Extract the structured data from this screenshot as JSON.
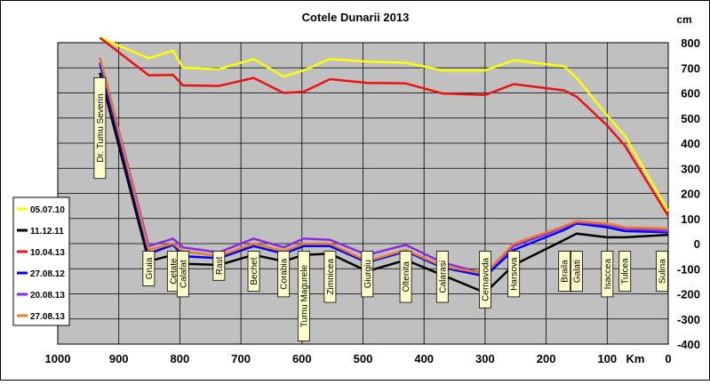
{
  "chart_data": {
    "type": "line",
    "title": "Cotele Dunarii 2013",
    "ylabel": "cm",
    "xlabel": "Km",
    "xlim": [
      1000,
      0
    ],
    "ylim": [
      -400,
      800
    ],
    "x_ticks": [
      1000,
      900,
      800,
      700,
      600,
      500,
      400,
      300,
      200,
      100,
      0
    ],
    "y_ticks": [
      -400,
      -300,
      -200,
      -100,
      0,
      100,
      200,
      300,
      400,
      500,
      600,
      700,
      800
    ],
    "grid": true,
    "legend_position": "left",
    "colors": {
      "plot_bg": "#c0c0c0",
      "grid": "#000000",
      "label_box": "#ffffcc",
      "series": {
        "05.07.10": "#ffff00",
        "11.12.11": "#000000",
        "10.04.13": "#e81414",
        "27.08.12": "#0000ff",
        "20.08.13": "#8a2be2",
        "27.08.13": "#e87c2c"
      }
    },
    "stations": [
      {
        "name": "Dr. Tumu  Severin",
        "km": 931
      },
      {
        "name": "Gruia",
        "km": 851
      },
      {
        "name": "Cetate",
        "km": 811
      },
      {
        "name": "Calafat",
        "km": 795
      },
      {
        "name": "Rast",
        "km": 736
      },
      {
        "name": "Bechet",
        "km": 679
      },
      {
        "name": "Corabia",
        "km": 630
      },
      {
        "name": "Turnu  Magurele",
        "km": 597
      },
      {
        "name": "Zimnicea",
        "km": 554
      },
      {
        "name": "Giurgiu",
        "km": 493
      },
      {
        "name": "Oltenita",
        "km": 430
      },
      {
        "name": "Calarasi",
        "km": 370
      },
      {
        "name": "Cernavoda",
        "km": 300
      },
      {
        "name": "Harsova",
        "km": 253
      },
      {
        "name": "Braila",
        "km": 170
      },
      {
        "name": "Galati",
        "km": 150
      },
      {
        "name": "Isaccea",
        "km": 100
      },
      {
        "name": "Tulcea",
        "km": 71
      },
      {
        "name": "Sulina",
        "km": 0
      }
    ],
    "series": [
      {
        "name": "05.07.10",
        "x": [
          931,
          851,
          811,
          795,
          736,
          679,
          630,
          597,
          554,
          493,
          430,
          370,
          300,
          253,
          170,
          150,
          100,
          71,
          0
        ],
        "values": [
          820,
          738,
          768,
          700,
          695,
          735,
          665,
          690,
          735,
          725,
          720,
          690,
          690,
          730,
          705,
          660,
          510,
          430,
          130
        ]
      },
      {
        "name": "11.12.11",
        "x": [
          931,
          851,
          811,
          795,
          736,
          679,
          630,
          597,
          554,
          493,
          430,
          370,
          300,
          253,
          170,
          150,
          100,
          71,
          0
        ],
        "values": [
          680,
          -70,
          -45,
          -80,
          -85,
          -45,
          -70,
          -45,
          -40,
          -110,
          -65,
          -125,
          -195,
          -85,
          15,
          40,
          25,
          25,
          35
        ]
      },
      {
        "name": "10.04.13",
        "x": [
          931,
          851,
          811,
          795,
          736,
          679,
          630,
          597,
          554,
          493,
          430,
          370,
          300,
          253,
          170,
          150,
          100,
          71,
          0
        ],
        "values": [
          820,
          670,
          672,
          630,
          628,
          660,
          600,
          605,
          655,
          640,
          638,
          598,
          592,
          635,
          610,
          585,
          470,
          390,
          110
        ]
      },
      {
        "name": "27.08.12",
        "x": [
          931,
          851,
          811,
          795,
          736,
          679,
          630,
          597,
          554,
          493,
          430,
          370,
          300,
          253,
          170,
          150,
          100,
          71,
          0
        ],
        "values": [
          720,
          -40,
          -5,
          -50,
          -58,
          -10,
          -40,
          -10,
          -10,
          -75,
          -30,
          -95,
          -130,
          -25,
          55,
          80,
          65,
          50,
          45
        ]
      },
      {
        "name": "20.08.13",
        "x": [
          931,
          851,
          811,
          795,
          736,
          679,
          630,
          597,
          554,
          493,
          430,
          370,
          300,
          253,
          170,
          150,
          100,
          71,
          0
        ],
        "values": [
          740,
          -10,
          20,
          -15,
          -35,
          20,
          -15,
          20,
          15,
          -45,
          -5,
          -75,
          -120,
          -10,
          65,
          85,
          75,
          60,
          50
        ]
      },
      {
        "name": "27.08.13",
        "x": [
          931,
          851,
          811,
          795,
          736,
          679,
          630,
          597,
          554,
          493,
          430,
          370,
          300,
          253,
          170,
          150,
          100,
          71,
          0
        ],
        "values": [
          740,
          -25,
          0,
          -30,
          -50,
          0,
          -30,
          0,
          0,
          -70,
          -25,
          -90,
          -120,
          0,
          70,
          90,
          80,
          65,
          60
        ]
      }
    ]
  }
}
